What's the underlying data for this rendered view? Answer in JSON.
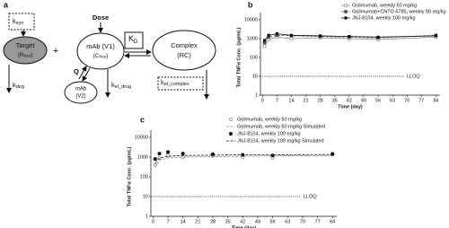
{
  "panel_a": {
    "label": "a",
    "k_syn": [
      "k",
      "syn"
    ],
    "dose": "Dose",
    "target": [
      "Target",
      "(R",
      "free",
      ")"
    ],
    "plus": "+",
    "mab_v1": [
      "mAb (V1)",
      "(C",
      "free",
      ")"
    ],
    "k_d": [
      "K",
      "D"
    ],
    "complex": [
      "Complex",
      "(RC)"
    ],
    "k_deg": [
      "k",
      "deg"
    ],
    "q": "Q",
    "mab_v2": [
      "mAb",
      "(V2)"
    ],
    "k_el_drug": [
      "k",
      "el_drug"
    ],
    "k_el_complex": [
      "k",
      "el_complex"
    ]
  },
  "chart_data": [
    {
      "type": "line",
      "panel": "b",
      "xlabel": "Time (day)",
      "ylabel": "Total TNFα Conc. (pg/mL)",
      "x": [
        1,
        3,
        7,
        14,
        28,
        42,
        56,
        84
      ],
      "xlim": [
        -1,
        86
      ],
      "xticks": [
        0,
        7,
        14,
        21,
        28,
        35,
        42,
        49,
        56,
        63,
        70,
        77,
        84
      ],
      "yscale": "log",
      "ylim": [
        1,
        10000
      ],
      "yticks": [
        1,
        10,
        100,
        1000,
        10000
      ],
      "reference": {
        "label": "LLOQ",
        "value": 10
      },
      "legend": "upper right",
      "series": [
        {
          "name": "Golimumab, weekly 50 mg/kg",
          "color": "#888888",
          "line": "solid",
          "marker": "open-circle",
          "values": [
            400,
            900,
            1200,
            1000,
            1100,
            1000,
            900,
            1200
          ]
        },
        {
          "name": "Golimumab+CNTO 6785, weekly 50 mg/kg",
          "color": "#555555",
          "line": "dashed",
          "marker": "filled-circle",
          "values": [
            600,
            1200,
            1500,
            1400,
            1300,
            1200,
            1100,
            1500
          ]
        },
        {
          "name": "JNJ-8104, weekly 100 mg/kg",
          "color": "#111111",
          "line": "solid",
          "marker": "filled-square",
          "values": [
            800,
            1500,
            1800,
            1500,
            1400,
            1300,
            1200,
            1400
          ]
        }
      ]
    },
    {
      "type": "line",
      "panel": "c",
      "xlabel": "Time (day)",
      "ylabel": "Total TNFα Conc. (pg/mL)",
      "x": [
        1,
        3,
        7,
        14,
        28,
        42,
        56,
        84
      ],
      "xlim": [
        -1,
        86
      ],
      "xticks": [
        0,
        7,
        14,
        21,
        28,
        35,
        42,
        49,
        56,
        63,
        70,
        77,
        84
      ],
      "yscale": "log",
      "ylim": [
        1,
        10000
      ],
      "yticks": [
        1,
        10,
        100,
        1000,
        10000
      ],
      "reference": {
        "label": "LLOQ",
        "value": 10
      },
      "legend": "upper right",
      "series": [
        {
          "name": "Golimumab, weekly 50 mg/kg",
          "color": "#888888",
          "line": "none",
          "marker": "open-circle",
          "values": [
            400,
            900,
            1200,
            1000,
            1100,
            1000,
            900,
            1500
          ]
        },
        {
          "name": "Golimumab, weekly 50 mg/kg Simulated",
          "color": "#888888",
          "line": "dashed",
          "marker": "none",
          "values": [
            300,
            700,
            900,
            1000,
            1050,
            1100,
            1150,
            1200
          ]
        },
        {
          "name": "JNJ-8104, weekly 100 mg/kg",
          "color": "#111111",
          "line": "none",
          "marker": "filled-circle",
          "values": [
            800,
            1500,
            1800,
            1500,
            1400,
            1300,
            1200,
            1400
          ]
        },
        {
          "name": "JNJ-8104, weekly 100 mg/kg Simulated",
          "color": "#111111",
          "line": "dashed",
          "marker": "none",
          "values": [
            500,
            900,
            1100,
            1200,
            1250,
            1300,
            1300,
            1350
          ]
        }
      ]
    }
  ]
}
